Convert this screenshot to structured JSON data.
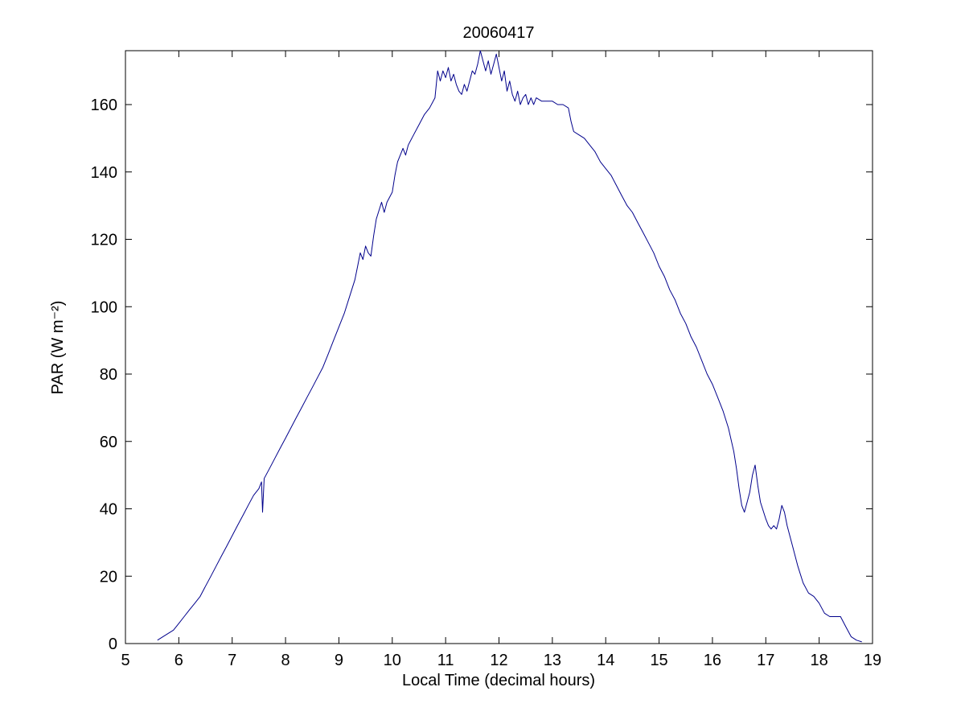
{
  "chart_data": {
    "type": "line",
    "title": "20060417",
    "xlabel": "Local Time (decimal hours)",
    "ylabel": "PAR (W m⁻²)",
    "xlim": [
      5,
      19
    ],
    "ylim": [
      0,
      176
    ],
    "xticks": [
      5,
      6,
      7,
      8,
      9,
      10,
      11,
      12,
      13,
      14,
      15,
      16,
      17,
      18,
      19
    ],
    "yticks": [
      0,
      20,
      40,
      60,
      80,
      100,
      120,
      140,
      160
    ],
    "grid": false,
    "legend": "none",
    "line_color": "#00008B",
    "background": "#FFFFFF",
    "points": [
      [
        5.6,
        1
      ],
      [
        5.7,
        2
      ],
      [
        5.8,
        3
      ],
      [
        5.9,
        4
      ],
      [
        6.0,
        6
      ],
      [
        6.1,
        8
      ],
      [
        6.2,
        10
      ],
      [
        6.3,
        12
      ],
      [
        6.4,
        14
      ],
      [
        6.5,
        17
      ],
      [
        6.6,
        20
      ],
      [
        6.7,
        23
      ],
      [
        6.8,
        26
      ],
      [
        6.9,
        29
      ],
      [
        7.0,
        32
      ],
      [
        7.1,
        35
      ],
      [
        7.2,
        38
      ],
      [
        7.3,
        41
      ],
      [
        7.4,
        44
      ],
      [
        7.5,
        46
      ],
      [
        7.55,
        48
      ],
      [
        7.57,
        39
      ],
      [
        7.6,
        49
      ],
      [
        7.7,
        52
      ],
      [
        7.8,
        55
      ],
      [
        7.9,
        58
      ],
      [
        8.0,
        61
      ],
      [
        8.1,
        64
      ],
      [
        8.2,
        67
      ],
      [
        8.3,
        70
      ],
      [
        8.4,
        73
      ],
      [
        8.5,
        76
      ],
      [
        8.6,
        79
      ],
      [
        8.7,
        82
      ],
      [
        8.8,
        86
      ],
      [
        8.9,
        90
      ],
      [
        9.0,
        94
      ],
      [
        9.1,
        98
      ],
      [
        9.2,
        103
      ],
      [
        9.3,
        108
      ],
      [
        9.35,
        112
      ],
      [
        9.4,
        116
      ],
      [
        9.45,
        114
      ],
      [
        9.5,
        118
      ],
      [
        9.55,
        116
      ],
      [
        9.6,
        115
      ],
      [
        9.65,
        121
      ],
      [
        9.7,
        126
      ],
      [
        9.8,
        131
      ],
      [
        9.85,
        128
      ],
      [
        9.9,
        131
      ],
      [
        10.0,
        134
      ],
      [
        10.05,
        139
      ],
      [
        10.1,
        143
      ],
      [
        10.2,
        147
      ],
      [
        10.25,
        145
      ],
      [
        10.3,
        148
      ],
      [
        10.4,
        151
      ],
      [
        10.5,
        154
      ],
      [
        10.6,
        157
      ],
      [
        10.7,
        159
      ],
      [
        10.8,
        162
      ],
      [
        10.85,
        170
      ],
      [
        10.9,
        167
      ],
      [
        10.95,
        170
      ],
      [
        11.0,
        168
      ],
      [
        11.05,
        171
      ],
      [
        11.1,
        167
      ],
      [
        11.15,
        169
      ],
      [
        11.2,
        166
      ],
      [
        11.25,
        164
      ],
      [
        11.3,
        163
      ],
      [
        11.35,
        166
      ],
      [
        11.4,
        164
      ],
      [
        11.45,
        167
      ],
      [
        11.5,
        170
      ],
      [
        11.55,
        169
      ],
      [
        11.6,
        172
      ],
      [
        11.65,
        176
      ],
      [
        11.7,
        173
      ],
      [
        11.75,
        170
      ],
      [
        11.8,
        173
      ],
      [
        11.85,
        169
      ],
      [
        11.9,
        172
      ],
      [
        11.95,
        175
      ],
      [
        12.0,
        171
      ],
      [
        12.05,
        167
      ],
      [
        12.1,
        170
      ],
      [
        12.15,
        164
      ],
      [
        12.2,
        167
      ],
      [
        12.25,
        163
      ],
      [
        12.3,
        161
      ],
      [
        12.35,
        164
      ],
      [
        12.4,
        160
      ],
      [
        12.45,
        162
      ],
      [
        12.5,
        163
      ],
      [
        12.55,
        160
      ],
      [
        12.6,
        162
      ],
      [
        12.65,
        160
      ],
      [
        12.7,
        162
      ],
      [
        12.8,
        161
      ],
      [
        12.9,
        161
      ],
      [
        13.0,
        161
      ],
      [
        13.1,
        160
      ],
      [
        13.2,
        160
      ],
      [
        13.3,
        159
      ],
      [
        13.35,
        155
      ],
      [
        13.4,
        152
      ],
      [
        13.5,
        151
      ],
      [
        13.6,
        150
      ],
      [
        13.7,
        148
      ],
      [
        13.8,
        146
      ],
      [
        13.9,
        143
      ],
      [
        14.0,
        141
      ],
      [
        14.1,
        139
      ],
      [
        14.2,
        136
      ],
      [
        14.3,
        133
      ],
      [
        14.4,
        130
      ],
      [
        14.5,
        128
      ],
      [
        14.6,
        125
      ],
      [
        14.7,
        122
      ],
      [
        14.8,
        119
      ],
      [
        14.9,
        116
      ],
      [
        15.0,
        112
      ],
      [
        15.1,
        109
      ],
      [
        15.2,
        105
      ],
      [
        15.3,
        102
      ],
      [
        15.4,
        98
      ],
      [
        15.5,
        95
      ],
      [
        15.6,
        91
      ],
      [
        15.7,
        88
      ],
      [
        15.8,
        84
      ],
      [
        15.9,
        80
      ],
      [
        16.0,
        77
      ],
      [
        16.1,
        73
      ],
      [
        16.2,
        69
      ],
      [
        16.3,
        64
      ],
      [
        16.4,
        57
      ],
      [
        16.45,
        52
      ],
      [
        16.5,
        46
      ],
      [
        16.55,
        41
      ],
      [
        16.6,
        39
      ],
      [
        16.65,
        42
      ],
      [
        16.7,
        45
      ],
      [
        16.75,
        50
      ],
      [
        16.8,
        53
      ],
      [
        16.85,
        47
      ],
      [
        16.9,
        42
      ],
      [
        17.0,
        37
      ],
      [
        17.05,
        35
      ],
      [
        17.1,
        34
      ],
      [
        17.15,
        35
      ],
      [
        17.2,
        34
      ],
      [
        17.25,
        37
      ],
      [
        17.3,
        41
      ],
      [
        17.35,
        39
      ],
      [
        17.4,
        35
      ],
      [
        17.5,
        29
      ],
      [
        17.6,
        23
      ],
      [
        17.7,
        18
      ],
      [
        17.8,
        15
      ],
      [
        17.9,
        14
      ],
      [
        18.0,
        12
      ],
      [
        18.1,
        9
      ],
      [
        18.2,
        8
      ],
      [
        18.3,
        8
      ],
      [
        18.4,
        8
      ],
      [
        18.5,
        5
      ],
      [
        18.6,
        2
      ],
      [
        18.7,
        1
      ],
      [
        18.8,
        0.5
      ]
    ]
  }
}
